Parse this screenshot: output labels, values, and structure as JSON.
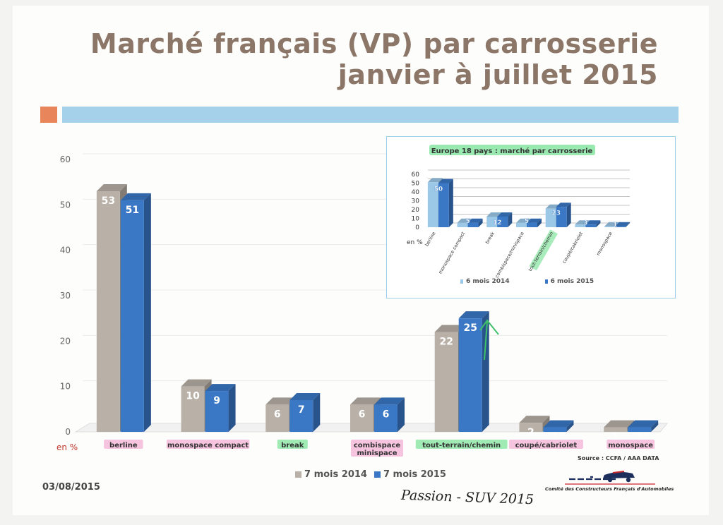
{
  "header": {
    "title_line1": "Marché français (VP) par carrosserie",
    "title_line2": "janvier à juillet 2015"
  },
  "chart_data": [
    {
      "type": "bar",
      "title": "Marché français (VP) par carrosserie janvier à juillet 2015",
      "ylabel": "en %",
      "ylim": [
        0,
        60
      ],
      "yticks": [
        0,
        10,
        20,
        30,
        40,
        50,
        60
      ],
      "categories": [
        "berline",
        "monospace compact",
        "break",
        "combispace minispace",
        "tout-terrain/chemin",
        "coupé/cabriolet",
        "monospace"
      ],
      "series": [
        {
          "name": "7 mois 2014",
          "color": "#b9b1a7",
          "values": [
            53,
            10,
            6,
            6,
            22,
            2,
            1
          ]
        },
        {
          "name": "7 mois 2015",
          "color": "#3a78c6",
          "values": [
            51,
            9,
            7,
            6,
            25,
            1,
            1
          ]
        }
      ],
      "legend": "bottom"
    },
    {
      "type": "bar",
      "title": "Europe 18 pays : marché par carrosserie",
      "ylabel": "en %",
      "ylim": [
        0,
        60
      ],
      "yticks": [
        0,
        10,
        20,
        30,
        40,
        50,
        60
      ],
      "categories": [
        "berline",
        "monospace compact",
        "break",
        "combispace/minispace",
        "tout-terrain/chemin",
        "coupé/cabriolet",
        "monospace"
      ],
      "series": [
        {
          "name": "6 mois 2014",
          "color": "#9cc8e8",
          "values": [
            51,
            5,
            12,
            5,
            21,
            3,
            1
          ]
        },
        {
          "name": "6 mois 2015",
          "color": "#3a78c6",
          "values": [
            50,
            5,
            12,
            5,
            23,
            3,
            1
          ]
        }
      ],
      "data_labels": [
        50,
        5,
        12,
        5,
        23,
        3,
        1
      ],
      "legend": "bottom"
    }
  ],
  "footer": {
    "date": "03/08/2015",
    "source": "Source : CCFA / AAA DATA",
    "logo_text": "Comité des Constructeurs Français d'Automobiles",
    "handwritten": "Passion - SUV 2015"
  },
  "colors": {
    "title": "#8b7668",
    "accent_band": "#a5d2ea",
    "accent_box": "#e8855a",
    "highlight_pink": "#f2a6cf",
    "highlight_green": "#6fe08e"
  }
}
